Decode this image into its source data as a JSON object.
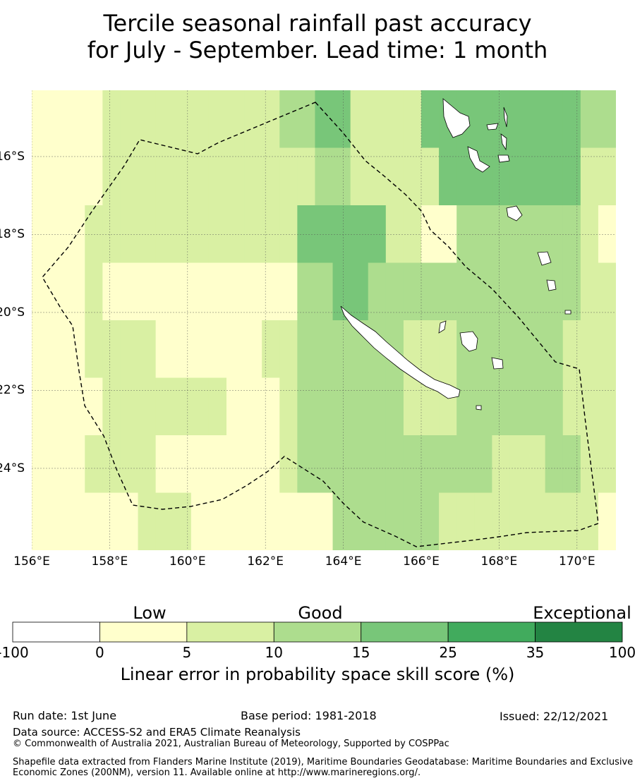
{
  "title": {
    "line1": "Tercile seasonal rainfall past accuracy",
    "line2": "for July - September. Lead time: 1 month"
  },
  "map": {
    "lon_range": [
      156,
      171
    ],
    "lat_range": [
      -14.3,
      -26.1
    ],
    "x_ticks": [
      "156°E",
      "158°E",
      "160°E",
      "162°E",
      "164°E",
      "166°E",
      "168°E",
      "170°E"
    ],
    "y_ticks": [
      "16°S",
      "18°S",
      "20°S",
      "22°S",
      "24°S"
    ],
    "grid": true,
    "cell_size_deg": 0.83,
    "boundary": "New Caledonia Exclusive Economic Zone (dashed line)",
    "skill_class_grid": [
      "111122222222223344222244444444433",
      "111122222222222233222224444444422",
      "111222222222222444442211333333321",
      "111211111111111334433333333333322",
      "111222211111122333333222333333222",
      "111122222221112333333222333333222",
      "111222211111112333333333332223322",
      "111111222111111113333332222222221"
    ]
  },
  "colorbar": {
    "headers": [
      "Low",
      "Good",
      "Exceptional"
    ],
    "ticks": [
      "-100",
      "0",
      "5",
      "10",
      "15",
      "25",
      "35",
      "100"
    ],
    "colors": [
      "#ffffff",
      "#ffffcc",
      "#d9f0a3",
      "#addd8e",
      "#78c679",
      "#41ab5d",
      "#238443"
    ],
    "label": "Linear error in probability space skill score (%)"
  },
  "footer": {
    "run_date": "Run date: 1st June",
    "base_period": "Base period: 1981-2018",
    "issued": "Issued: 22/12/2021",
    "data_source": "Data source: ACCESS-S2 and ERA5 Climate Reanalysis",
    "copyright": "© Commonwealth of Australia 2021, Australian Bureau of Meteorology, Supported by COSPPac",
    "shapefile": "Shapefile data extracted from Flanders Marine Institute (2019), Maritime Boundaries Geodatabase: Maritime Boundaries and Exclusive Economic Zones (200NM), version 11. Available online at http://www.marineregions.org/."
  }
}
